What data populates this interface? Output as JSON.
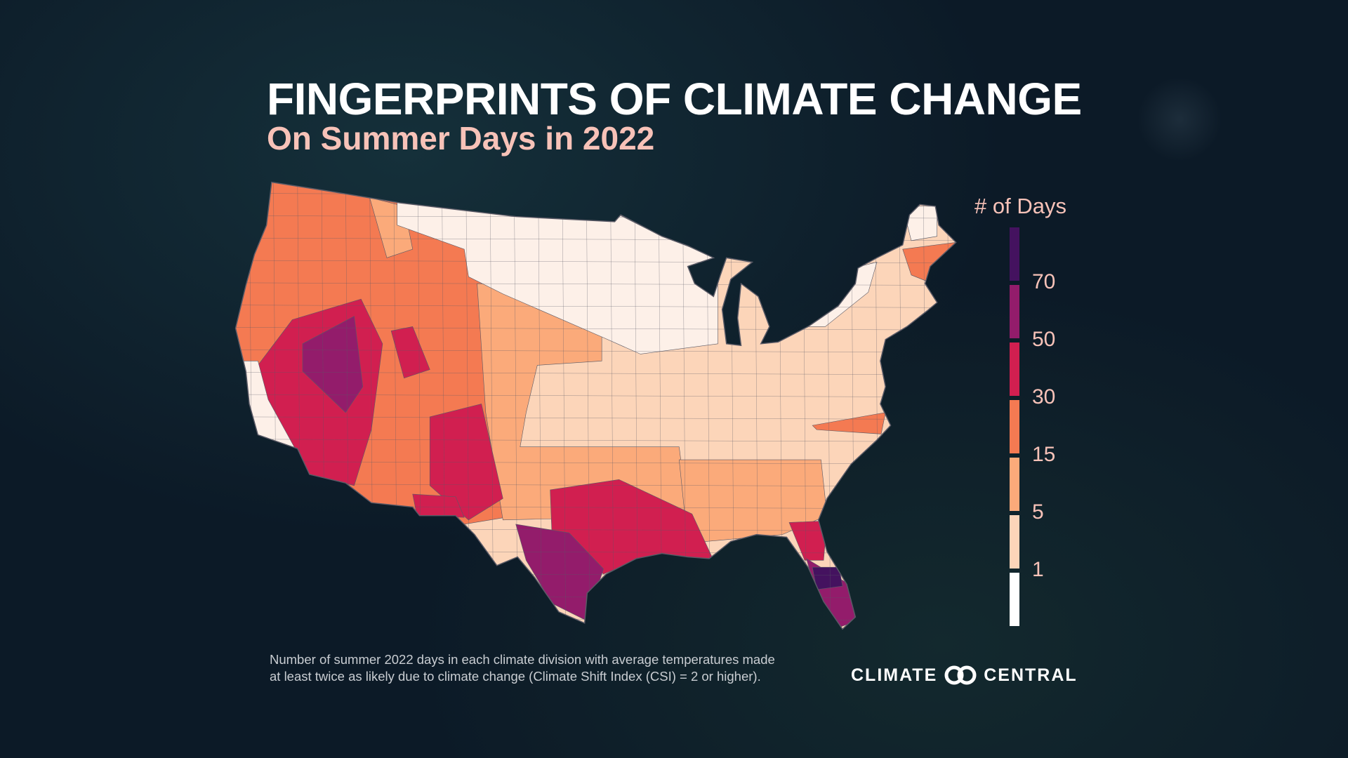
{
  "header": {
    "title": "FINGERPRINTS OF CLIMATE CHANGE",
    "subtitle": "On Summer Days in 2022"
  },
  "legend": {
    "title": "# of Days",
    "bins": [
      {
        "color": "#44125f",
        "label": "70"
      },
      {
        "color": "#931c6b",
        "label": "50"
      },
      {
        "color": "#d11f50",
        "label": "30"
      },
      {
        "color": "#f47a52",
        "label": "15"
      },
      {
        "color": "#fbaa7a",
        "label": "5"
      },
      {
        "color": "#fcd5b9",
        "label": "1"
      },
      {
        "color": "#ffffff",
        "label": ""
      }
    ]
  },
  "map": {
    "subject": "Contiguous United States climate divisions",
    "colors": {
      "none": "#fdf0e8",
      "d1_5": "#fcd5b9",
      "d5_15": "#fbaa7a",
      "d15_30": "#f47a52",
      "d30_50": "#d11f50",
      "d50_70": "#931c6b",
      "d70_plus": "#44125f",
      "border": "#5a5a66"
    }
  },
  "footer": {
    "note_line1": "Number of summer 2022 days in each climate division with average temperatures made",
    "note_line2": "at least twice as likely due to climate change (Climate Shift Index (CSI) = 2 or higher).",
    "logo_left": "CLIMATE",
    "logo_right": "CENTRAL"
  }
}
